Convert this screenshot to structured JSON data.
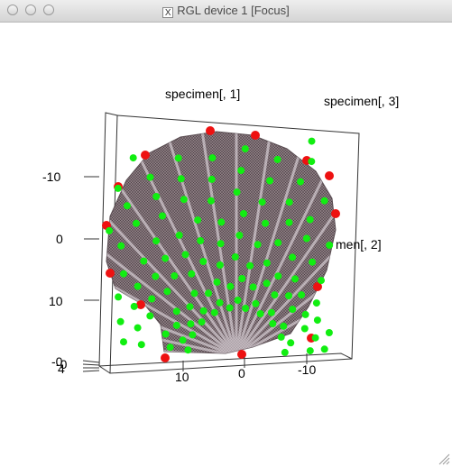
{
  "window": {
    "title": "RGL device 1 [Focus]",
    "x_glyph": "X"
  },
  "plot": {
    "axis_label_1": "specimen[, 1]",
    "axis_label_3": "specimen[, 3]",
    "axis_label_2": "men[, 2]",
    "y_ticks": [
      "-10",
      "0",
      "10"
    ],
    "x_ticks": [
      "10",
      "0",
      "-10"
    ],
    "z_ticks_overlap": "-0",
    "z_tick_last": "4",
    "colors": {
      "landmark_red": "#ee1111",
      "landmark_green": "#11ee11",
      "mesh": "#7a6a70"
    }
  }
}
